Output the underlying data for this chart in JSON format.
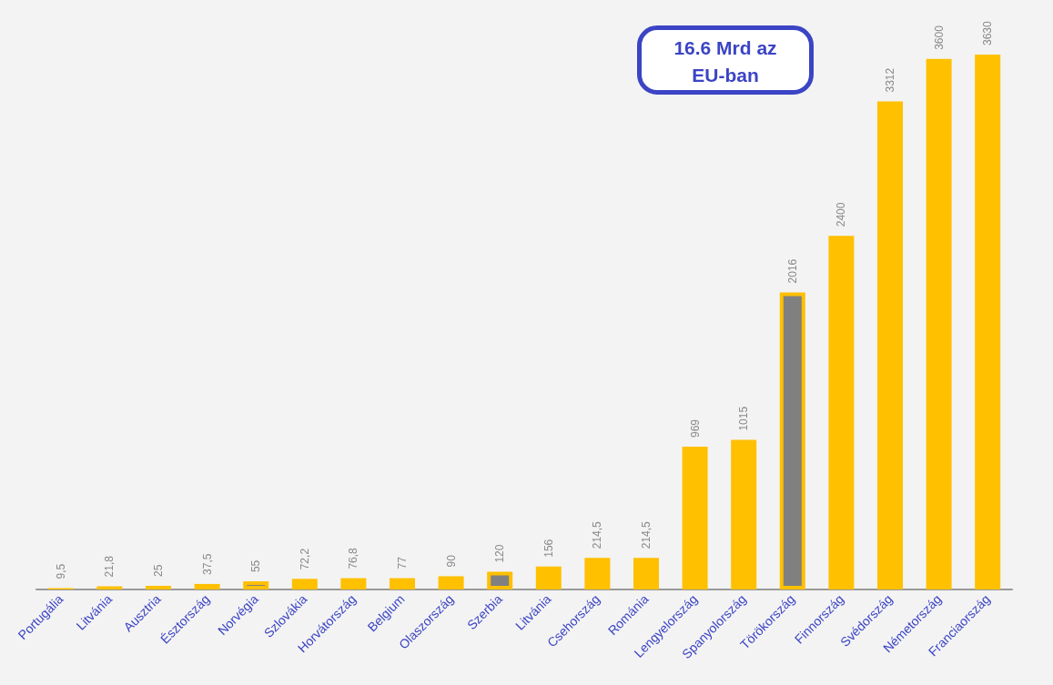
{
  "chart_data": {
    "type": "bar",
    "categories": [
      "Portugália",
      "Litvánia",
      "Ausztria",
      "Észtország",
      "Norvégia",
      "Szlovákia",
      "Horvátország",
      "Belgium",
      "Olaszország",
      "Szerbia",
      "Litvánia",
      "Csehország",
      "Románia",
      "Lengyelország",
      "Spanyolország",
      "Törökország",
      "Finnország",
      "Svédország",
      "Németország",
      "Franciaország"
    ],
    "values": [
      9.5,
      21.8,
      25,
      37.5,
      55,
      72.2,
      76.8,
      77,
      90,
      120,
      156,
      214.5,
      214.5,
      969,
      1015,
      2016,
      2400,
      3312,
      3600,
      3630
    ],
    "value_labels": [
      "9,5",
      "21,8",
      "25",
      "37,5",
      "55",
      "72,2",
      "76,8",
      "77",
      "90",
      "120",
      "156",
      "214,5",
      "214,5",
      "969",
      "1015",
      "2016",
      "2400",
      "3312",
      "3600",
      "3630"
    ],
    "color": "#ffc000",
    "colors": [
      "#ffc000",
      "#ffc000",
      "#ffc000",
      "#ffc000",
      "#808080",
      "#ffc000",
      "#ffc000",
      "#ffc000",
      "#ffc000",
      "#808080",
      "#ffc000",
      "#ffc000",
      "#ffc000",
      "#ffc000",
      "#ffc000",
      "#808080",
      "#ffc000",
      "#ffc000",
      "#ffc000",
      "#ffc000"
    ],
    "ylim": [
      0,
      3630
    ],
    "annotations": [
      "16.6 Mrd az EU-ban"
    ]
  }
}
